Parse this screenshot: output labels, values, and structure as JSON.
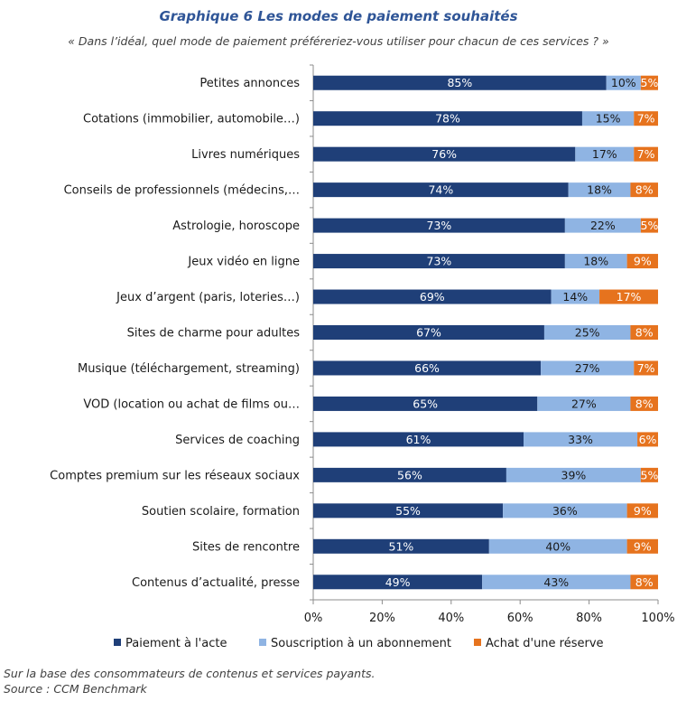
{
  "title": "Graphique 6 Les modes de paiement souhaités",
  "subtitle": "« Dans l’idéal, quel mode de paiement préféreriez-vous utiliser pour chacun de ces services ? »",
  "footer": {
    "note": "Sur la base des consommateurs de contenus et services payants.",
    "source": "Source : CCM Benchmark"
  },
  "colors": {
    "paiement": "#1f3f78",
    "souscription": "#8fb4e3",
    "achat": "#e6731e"
  },
  "chart_data": {
    "type": "bar",
    "orientation": "horizontal",
    "stacked": true,
    "categories": [
      "Petites annonces",
      "Cotations (immobilier, automobile…)",
      "Livres numériques",
      "Conseils  de professionnels  (médecins,…",
      "Astrologie, horoscope",
      "Jeux vidéo en ligne",
      "Jeux d’argent (paris, loteries…)",
      "Sites de charme pour adultes",
      "Musique (téléchargement, streaming)",
      "VOD (location ou achat de films ou…",
      "Services de coaching",
      "Comptes premium sur les réseaux sociaux",
      "Soutien scolaire, formation",
      "Sites de rencontre",
      "Contenus  d’actualité, presse"
    ],
    "series": [
      {
        "name": "Paiement à l'acte",
        "values": [
          85,
          78,
          76,
          74,
          73,
          73,
          69,
          67,
          66,
          65,
          61,
          56,
          55,
          51,
          49
        ]
      },
      {
        "name": "Souscription à un abonnement",
        "values": [
          10,
          15,
          17,
          18,
          22,
          18,
          14,
          25,
          27,
          27,
          33,
          39,
          36,
          40,
          43
        ]
      },
      {
        "name": "Achat d'une réserve",
        "values": [
          5,
          7,
          7,
          8,
          5,
          9,
          17,
          8,
          7,
          8,
          6,
          5,
          9,
          9,
          8
        ]
      }
    ],
    "xlim": [
      0,
      100
    ],
    "xticks": [
      "0%",
      "20%",
      "40%",
      "60%",
      "80%",
      "100%"
    ],
    "legend_position": "bottom",
    "data_label_suffix": "%"
  }
}
